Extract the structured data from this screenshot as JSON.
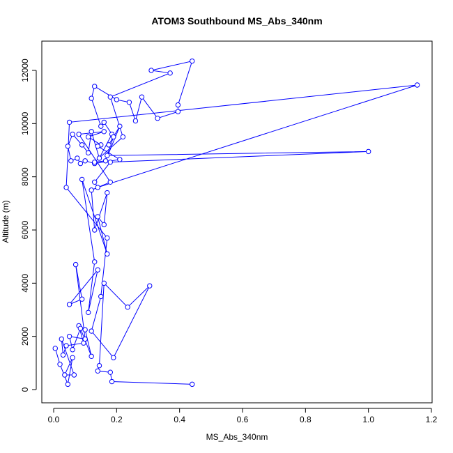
{
  "chart_data": {
    "type": "line",
    "title": "ATOM3 Southbound MS_Abs_340nm",
    "xlabel": "MS_Abs_340nm",
    "ylabel": "Altitude (m)",
    "xlim": [
      0,
      1.2
    ],
    "ylim": [
      0,
      12000
    ],
    "x_ticks": [
      "0.0",
      "0.2",
      "0.4",
      "0.6",
      "0.8",
      "1.0",
      "1.2"
    ],
    "y_ticks": [
      "0",
      "2000",
      "4000",
      "6000",
      "8000",
      "10000",
      "12000"
    ],
    "markers": "open-circle",
    "color": "#0000ff",
    "grid": false,
    "legend": "none",
    "series": [
      {
        "x": [
          0.005,
          0.02,
          0.045,
          0.06,
          0.035,
          0.065,
          0.025,
          0.03,
          0.04,
          0.095,
          0.08,
          0.1,
          0.12,
          0.085,
          0.06,
          0.05,
          0.1,
          0.07,
          0.09,
          0.05,
          0.14,
          0.11,
          0.13,
          0.09,
          0.17,
          0.14,
          0.16,
          0.17,
          0.13,
          0.12,
          0.18,
          0.08,
          0.16,
          0.11,
          0.15,
          0.14,
          0.21,
          0.13,
          0.1,
          0.085,
          0.075,
          0.055,
          0.045,
          0.06,
          0.09,
          0.11,
          0.12,
          0.145,
          0.185,
          0.16,
          0.15,
          0.12,
          0.13,
          0.2,
          0.24,
          0.26,
          0.28,
          0.33,
          0.395,
          0.395,
          0.44,
          0.31,
          0.37,
          0.18,
          0.22,
          0.13,
          0.165,
          0.21,
          0.175,
          0.19,
          0.17,
          1.0,
          0.18,
          0.13,
          0.14,
          1.155,
          0.05,
          0.04,
          0.17,
          0.15,
          0.12,
          0.19,
          0.305,
          0.235,
          0.16,
          0.145,
          0.14,
          0.18,
          0.185,
          0.44
        ],
        "y": [
          1550,
          950,
          200,
          1200,
          550,
          550,
          1900,
          1300,
          1650,
          1750,
          2400,
          2250,
          1250,
          2300,
          1500,
          2000,
          1900,
          4700,
          3400,
          3200,
          4500,
          2900,
          4800,
          7900,
          5100,
          6500,
          6200,
          7400,
          6000,
          7500,
          7800,
          9600,
          9700,
          9500,
          9200,
          9150,
          8650,
          8500,
          8600,
          8500,
          8700,
          8600,
          9150,
          9600,
          9200,
          8900,
          9700,
          8700,
          9600,
          10050,
          9900,
          10950,
          11400,
          10900,
          10800,
          10100,
          11000,
          10200,
          10450,
          10700,
          12350,
          12000,
          11900,
          11000,
          9500,
          8550,
          8600,
          9900,
          9200,
          9500,
          8800,
          8950,
          8550,
          7800,
          7600,
          11450,
          10050,
          7600,
          5700,
          3500,
          2200,
          1200,
          3900,
          3100,
          4000,
          900,
          700,
          650,
          300,
          200
        ]
      }
    ]
  }
}
